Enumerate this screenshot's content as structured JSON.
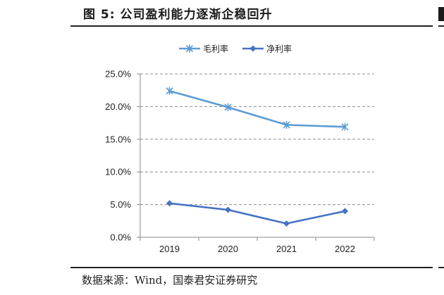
{
  "figure": {
    "title": "图 5:  公司盈利能力逐渐企稳回升",
    "source": "数据来源：Wind，国泰君安证券研究"
  },
  "chart_data": {
    "type": "line",
    "title": "",
    "xlabel": "",
    "ylabel": "",
    "categories": [
      "2019",
      "2020",
      "2021",
      "2022"
    ],
    "series": [
      {
        "name": "毛利率",
        "values": [
          22.4,
          19.9,
          17.2,
          16.9
        ],
        "color": "#5b9bd5",
        "marker": "asterisk"
      },
      {
        "name": "净利率",
        "values": [
          5.2,
          4.2,
          2.1,
          4.0
        ],
        "color": "#4472c4",
        "marker": "diamond"
      }
    ],
    "ylim": [
      0,
      25
    ],
    "yticks": [
      "0.0%",
      "5.0%",
      "10.0%",
      "15.0%",
      "20.0%",
      "25.0%"
    ],
    "grid": true,
    "legend_position": "top"
  }
}
